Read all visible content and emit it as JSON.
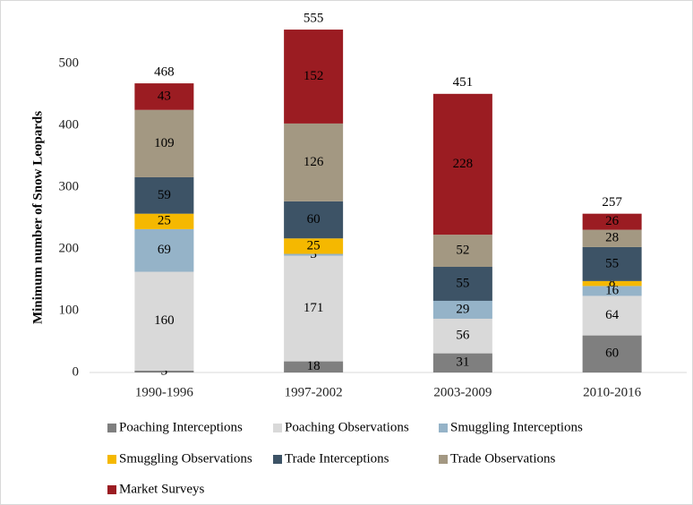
{
  "chart_data": {
    "type": "stacked_bar",
    "y_label": "Minimum number of Snow Leopards",
    "categories": [
      "1990-1996",
      "1997-2002",
      "2003-2009",
      "2010-2016"
    ],
    "series": [
      {
        "name": "Poaching Interceptions",
        "color": "#7f7f7f",
        "values": [
          3,
          18,
          31,
          60
        ]
      },
      {
        "name": "Poaching Observations",
        "color": "#d9d9d9",
        "values": [
          160,
          171,
          56,
          64
        ]
      },
      {
        "name": "Smuggling Interceptions",
        "color": "#95b3c8",
        "values": [
          69,
          3,
          29,
          16
        ]
      },
      {
        "name": "Smuggling Observations",
        "color": "#f5b800",
        "values": [
          25,
          25,
          null,
          8
        ]
      },
      {
        "name": "Trade Interceptions",
        "color": "#3d5366",
        "values": [
          59,
          60,
          55,
          55
        ]
      },
      {
        "name": "Trade Observations",
        "color": "#a39882",
        "values": [
          109,
          126,
          52,
          28
        ]
      },
      {
        "name": "Market Surveys",
        "color": "#9b1c22",
        "values": [
          43,
          152,
          228,
          26
        ]
      }
    ],
    "totals": [
      468,
      555,
      451,
      257
    ],
    "ylim": [
      0,
      560
    ],
    "yticks": [
      0,
      100,
      200,
      300,
      400,
      500
    ],
    "grid": false
  }
}
